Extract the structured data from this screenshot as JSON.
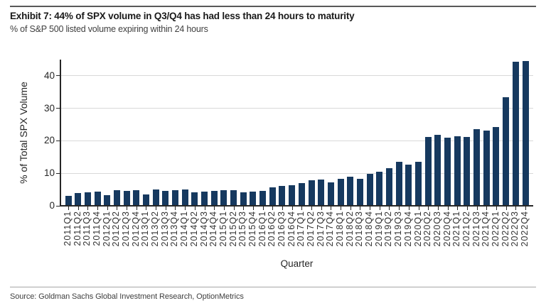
{
  "header": {
    "title": "Exhibit 7: 44% of SPX volume in Q3/Q4 has had less than 24 hours to maturity",
    "subtitle": "% of S&P 500 listed volume expiring within 24 hours"
  },
  "footer": {
    "source": "Source: Goldman Sachs Global Investment Research, OptionMetrics"
  },
  "chart_data": {
    "type": "bar",
    "title": "Exhibit 7: 44% of SPX volume in Q3/Q4 has had less than 24 hours to maturity",
    "subtitle": "% of S&P 500 listed volume expiring within 24 hours",
    "xlabel": "Quarter",
    "ylabel": "% of Total SPX Volume",
    "ylim": [
      0,
      45
    ],
    "yticks": [
      0,
      10,
      20,
      30,
      40
    ],
    "grid": "horizontal",
    "legend": "none",
    "bar_color": "#16395f",
    "gridline_color": "#d9d9d9",
    "axis_color": "#262626",
    "categories": [
      "2011Q1",
      "2011Q2",
      "2011Q3",
      "2011Q4",
      "2012Q1",
      "2012Q2",
      "2012Q3",
      "2012Q4",
      "2013Q1",
      "2013Q2",
      "2013Q3",
      "2013Q4",
      "2014Q1",
      "2014Q2",
      "2014Q3",
      "2014Q4",
      "2015Q1",
      "2015Q2",
      "2015Q3",
      "2015Q4",
      "2016Q1",
      "2016Q2",
      "2016Q3",
      "2016Q4",
      "2017Q1",
      "2017Q2",
      "2017Q3",
      "2017Q4",
      "2018Q1",
      "2018Q2",
      "2018Q3",
      "2018Q4",
      "2019Q1",
      "2019Q2",
      "2019Q3",
      "2019Q4",
      "2020Q1",
      "2020Q2",
      "2020Q3",
      "2020Q4",
      "2021Q1",
      "2021Q2",
      "2021Q3",
      "2021Q4",
      "2022Q1",
      "2022Q2",
      "2022Q3",
      "2022Q4"
    ],
    "values": [
      3.0,
      3.9,
      4.1,
      4.3,
      3.3,
      4.9,
      4.5,
      4.7,
      3.6,
      5.0,
      4.5,
      4.7,
      5.0,
      4.2,
      4.4,
      4.5,
      4.7,
      4.8,
      4.2,
      4.4,
      4.6,
      5.7,
      6.1,
      6.4,
      6.9,
      7.8,
      8.0,
      7.2,
      8.2,
      9.0,
      8.4,
      9.9,
      10.4,
      11.5,
      13.5,
      12.6,
      13.5,
      21.2,
      21.8,
      20.9,
      21.5,
      21.1,
      23.7,
      23.2,
      24.2,
      33.5,
      44.3,
      44.5
    ]
  }
}
